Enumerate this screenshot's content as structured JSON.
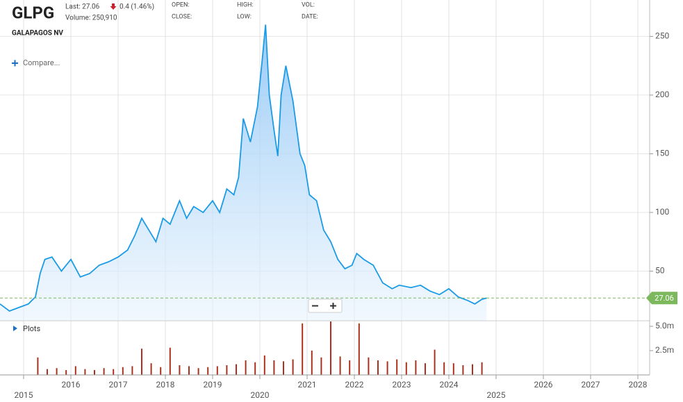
{
  "header": {
    "symbol": "GLPG",
    "last": "Last: 27.06",
    "change": "0.4 (1.46%)",
    "volume": "Volume: 250,910",
    "open": "OPEN:",
    "close": "CLOSE:",
    "high": "HIGH:",
    "low": "LOW:",
    "vol": "VOL:",
    "date": "DATE:",
    "name": "GALAPAGOS NV",
    "compare": "Compare...",
    "plots": "Plots"
  },
  "chart_data": [
    {
      "type": "area",
      "color": "#1a9be6",
      "last_value": 27.06,
      "last_color": "#7cb85c",
      "x": [
        2014.5,
        2014.7,
        2014.9,
        2015.1,
        2015.25,
        2015.35,
        2015.45,
        2015.6,
        2015.8,
        2016.0,
        2016.2,
        2016.4,
        2016.6,
        2016.8,
        2017.0,
        2017.2,
        2017.35,
        2017.5,
        2017.65,
        2017.8,
        2017.95,
        2018.1,
        2018.3,
        2018.45,
        2018.6,
        2018.8,
        2019.0,
        2019.15,
        2019.3,
        2019.45,
        2019.55,
        2019.65,
        2019.8,
        2019.95,
        2020.05,
        2020.12,
        2020.2,
        2020.3,
        2020.38,
        2020.45,
        2020.55,
        2020.7,
        2020.85,
        2020.95,
        2021.05,
        2021.2,
        2021.35,
        2021.5,
        2021.65,
        2021.8,
        2021.95,
        2022.05,
        2022.2,
        2022.4,
        2022.6,
        2022.8,
        2022.95,
        2023.2,
        2023.4,
        2023.6,
        2023.8,
        2024.0,
        2024.2,
        2024.4,
        2024.55,
        2024.7,
        2024.8
      ],
      "values": [
        22,
        16,
        19,
        22,
        28,
        48,
        60,
        62,
        50,
        60,
        45,
        48,
        55,
        58,
        62,
        68,
        80,
        95,
        85,
        75,
        95,
        90,
        110,
        95,
        105,
        100,
        110,
        100,
        120,
        115,
        130,
        180,
        160,
        190,
        230,
        260,
        200,
        170,
        148,
        200,
        225,
        195,
        150,
        140,
        115,
        110,
        85,
        75,
        60,
        52,
        55,
        65,
        60,
        55,
        40,
        35,
        38,
        36,
        38,
        33,
        30,
        35,
        28,
        25,
        22,
        26,
        27.06
      ],
      "xlim": [
        2014.5,
        2028.25
      ],
      "xticks": [
        2015,
        2016,
        2017,
        2018,
        2019,
        2020,
        2021,
        2022,
        2023,
        2024,
        2025,
        2026,
        2027,
        2028
      ],
      "ylim": [
        7.7,
        281
      ],
      "yticks": [
        50,
        100,
        150,
        200,
        250
      ],
      "grid": true
    },
    {
      "type": "bar",
      "color": "#a8321e",
      "x": [
        2015.3,
        2015.5,
        2015.7,
        2015.9,
        2016.1,
        2016.3,
        2016.5,
        2016.7,
        2016.9,
        2017.1,
        2017.3,
        2017.5,
        2017.7,
        2017.9,
        2018.1,
        2018.3,
        2018.5,
        2018.7,
        2018.9,
        2019.1,
        2019.3,
        2019.5,
        2019.7,
        2019.9,
        2020.1,
        2020.3,
        2020.5,
        2020.7,
        2020.9,
        2021.1,
        2021.3,
        2021.5,
        2021.7,
        2021.9,
        2022.1,
        2022.3,
        2022.5,
        2022.7,
        2022.9,
        2023.1,
        2023.3,
        2023.5,
        2023.7,
        2023.9,
        2024.1,
        2024.3,
        2024.5,
        2024.7
      ],
      "values": [
        1800000,
        600000,
        700000,
        500000,
        900000,
        600000,
        500000,
        700000,
        600000,
        800000,
        900000,
        2700000,
        1200000,
        800000,
        2800000,
        1000000,
        900000,
        700000,
        800000,
        900000,
        1000000,
        1100000,
        1500000,
        1300000,
        2000000,
        1500000,
        1400000,
        1600000,
        5300000,
        2500000,
        1800000,
        5500000,
        1900000,
        1500000,
        5300000,
        1800000,
        1500000,
        1400000,
        1600000,
        1300000,
        1500000,
        1200000,
        2600000,
        1300000,
        1200000,
        1000000,
        1100000,
        1300000
      ],
      "xlim": [
        2014.5,
        2028.25
      ],
      "ylim": [
        0,
        5500000
      ],
      "yticks": [
        {
          "value": 5000000,
          "label": "5.0m"
        },
        {
          "value": 2500000,
          "label": "2.5m"
        }
      ]
    }
  ]
}
